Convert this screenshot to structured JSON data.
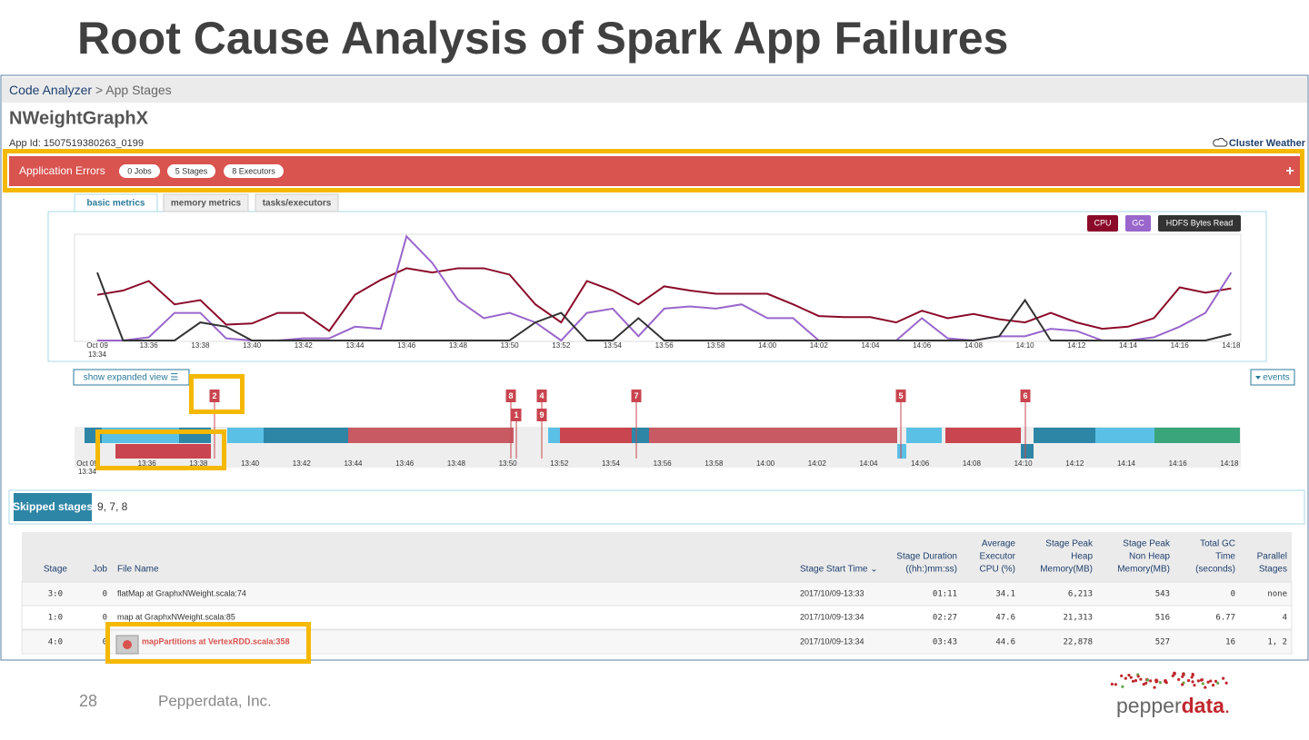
{
  "slide": {
    "title": "Root Cause Analysis of Spark App Failures",
    "page_number": "28",
    "company": "Pepperdata, Inc.",
    "logo": {
      "first": "pepper",
      "second": "data",
      "dot": "."
    }
  },
  "breadcrumb": {
    "root": "Code Analyzer",
    "separator": ">",
    "current": "App Stages"
  },
  "app": {
    "name": "NWeightGraphX",
    "app_id": "App Id: 1507519380263_0199",
    "cluster_weather": "Cluster Weather"
  },
  "errors": {
    "title": "Application Errors",
    "badges": [
      "0 Jobs",
      "5 Stages",
      "8 Executors"
    ],
    "toggle": "+"
  },
  "tabs": [
    "basic metrics",
    "memory metrics",
    "tasks/executors"
  ],
  "chart": {
    "type": "line",
    "date_label": "Oct 09",
    "x_labels": [
      "13:34",
      "13:36",
      "13:38",
      "13:40",
      "13:42",
      "13:44",
      "13:46",
      "13:48",
      "13:50",
      "13:52",
      "13:54",
      "13:56",
      "13:58",
      "14:00",
      "14:02",
      "14:04",
      "14:06",
      "14:08",
      "14:10",
      "14:12",
      "14:14",
      "14:16",
      "14:18"
    ],
    "ylim": [
      0,
      100
    ],
    "series": [
      {
        "name": "CPU",
        "color": "#8b0a2a",
        "values": [
          43,
          47,
          56,
          34,
          38,
          15,
          16,
          26,
          26,
          9,
          43,
          57,
          68,
          64,
          68,
          68,
          62,
          34,
          17,
          56,
          47,
          34,
          51,
          47,
          44,
          44,
          44,
          34,
          23,
          22,
          22,
          17,
          28,
          21,
          25,
          20,
          17,
          26,
          17,
          11,
          13,
          21,
          50,
          45,
          49
        ]
      },
      {
        "name": "GC",
        "color": "#9966cc",
        "values": [
          0,
          0,
          3,
          26,
          26,
          2,
          0,
          0,
          2,
          2,
          13,
          11,
          98,
          73,
          38,
          21,
          26,
          17,
          0,
          26,
          30,
          4,
          30,
          32,
          30,
          34,
          21,
          21,
          0,
          0,
          0,
          0,
          21,
          2,
          0,
          4,
          4,
          11,
          9,
          0,
          0,
          3,
          13,
          26,
          64
        ]
      },
      {
        "name": "HDFS Bytes Read",
        "color": "#333333",
        "values": [
          64,
          0,
          0,
          0,
          17,
          13,
          0,
          0,
          0,
          0,
          0,
          0,
          0,
          0,
          0,
          0,
          0,
          17,
          26,
          0,
          0,
          21,
          0,
          0,
          0,
          0,
          0,
          0,
          0,
          0,
          0,
          0,
          0,
          0,
          0,
          4,
          38,
          0,
          0,
          0,
          0,
          0,
          0,
          0,
          6
        ]
      }
    ]
  },
  "timeline": {
    "expand_button": "show expanded view ☰",
    "events_button": "events",
    "markers_top": [
      "2",
      "8",
      "4",
      "7",
      "5",
      "6"
    ],
    "markers_bottom": [
      "1",
      "9"
    ]
  },
  "skipped": {
    "label": "Skipped stages",
    "value": "9, 7, 8"
  },
  "table": {
    "headers": [
      [
        "Stage"
      ],
      [
        "Job"
      ],
      [
        "File Name"
      ],
      [
        "Stage Start Time ⌄"
      ],
      [
        "Stage Duration",
        "((hh:)mm:ss)"
      ],
      [
        "Average",
        "Executor",
        "CPU (%)"
      ],
      [
        "Stage Peak",
        "Heap",
        "Memory(MB)"
      ],
      [
        "Stage Peak",
        "Non Heap",
        "Memory(MB)"
      ],
      [
        "Total GC",
        "Time",
        "(seconds)"
      ],
      [
        "Parallel",
        "Stages"
      ]
    ],
    "rows": [
      [
        "3:0",
        "0",
        "flatMap at GraphxNWeight.scala:74",
        "2017/10/09-13:33",
        "01:11",
        "34.1",
        "6,213",
        "543",
        "0",
        "none"
      ],
      [
        "1:0",
        "0",
        "map at GraphxNWeight.scala:85",
        "2017/10/09-13:34",
        "02:27",
        "47.6",
        "21,313",
        "516",
        "6.77",
        "4"
      ],
      [
        "4:0",
        "0",
        "mapPartitions at VertexRDD.scala:358",
        "2017/10/09-13:34",
        "03:43",
        "44.6",
        "22,878",
        "527",
        "16",
        "1, 2"
      ]
    ]
  }
}
